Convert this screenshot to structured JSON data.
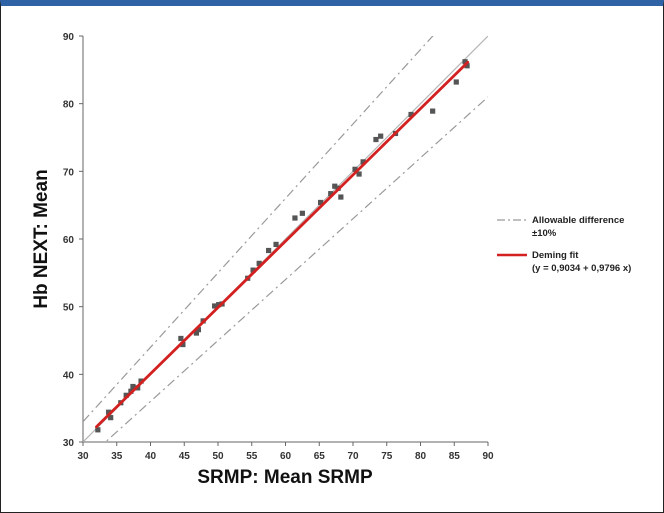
{
  "chart_data": {
    "type": "scatter",
    "title": "",
    "xlabel": "SRMP: Mean SRMP",
    "ylabel": "Hb NEXT: Mean",
    "xlim": [
      30,
      90
    ],
    "ylim": [
      30,
      90
    ],
    "xticks": [
      30,
      35,
      40,
      45,
      50,
      55,
      60,
      65,
      70,
      75,
      80,
      85,
      90
    ],
    "yticks": [
      30,
      40,
      50,
      60,
      70,
      80,
      90
    ],
    "grid": false,
    "legend_position": "right",
    "legend": [
      {
        "label": "Allowable difference",
        "label2": "±10%",
        "style": "dashed",
        "color": "#9a9a9a"
      },
      {
        "label": "Deming fit",
        "label2": "(y = 0,9034 + 0,9796 x)",
        "style": "solid",
        "color": "#d32020"
      }
    ],
    "series": [
      {
        "type": "scatter",
        "color": "#555555",
        "points": [
          [
            32.2,
            31.8
          ],
          [
            33.8,
            34.4
          ],
          [
            34.1,
            33.6
          ],
          [
            35.6,
            35.8
          ],
          [
            36.4,
            36.9
          ],
          [
            37.1,
            37.5
          ],
          [
            37.4,
            38.2
          ],
          [
            38.1,
            38.0
          ],
          [
            38.6,
            39.0
          ],
          [
            44.5,
            45.3
          ],
          [
            44.8,
            44.4
          ],
          [
            46.8,
            46.1
          ],
          [
            47.1,
            46.6
          ],
          [
            47.8,
            47.9
          ],
          [
            49.5,
            50.1
          ],
          [
            50.1,
            50.3
          ],
          [
            50.6,
            50.4
          ],
          [
            54.4,
            54.2
          ],
          [
            55.2,
            55.4
          ],
          [
            56.1,
            56.4
          ],
          [
            57.5,
            58.3
          ],
          [
            58.6,
            59.2
          ],
          [
            61.4,
            63.1
          ],
          [
            62.5,
            63.8
          ],
          [
            65.2,
            65.4
          ],
          [
            66.7,
            66.7
          ],
          [
            67.3,
            67.8
          ],
          [
            67.8,
            67.5
          ],
          [
            68.2,
            66.2
          ],
          [
            70.3,
            70.3
          ],
          [
            70.9,
            69.6
          ],
          [
            71.5,
            71.4
          ],
          [
            73.4,
            74.7
          ],
          [
            74.1,
            75.2
          ],
          [
            76.3,
            75.6
          ],
          [
            78.6,
            78.4
          ],
          [
            81.8,
            78.9
          ],
          [
            85.3,
            83.2
          ],
          [
            86.6,
            86.2
          ],
          [
            86.9,
            85.6
          ]
        ]
      }
    ],
    "lines": {
      "identity": {
        "slope": 1.0,
        "intercept": 0.0,
        "color": "#b5b5b5"
      },
      "deming_fit": {
        "slope": 0.9796,
        "intercept": 0.9034,
        "color": "#d32020"
      },
      "upper_bound": {
        "slope": 1.1,
        "intercept": 0.0,
        "color": "#9a9a9a"
      },
      "lower_bound": {
        "slope": 0.9,
        "intercept": 0.0,
        "color": "#9a9a9a"
      }
    }
  }
}
